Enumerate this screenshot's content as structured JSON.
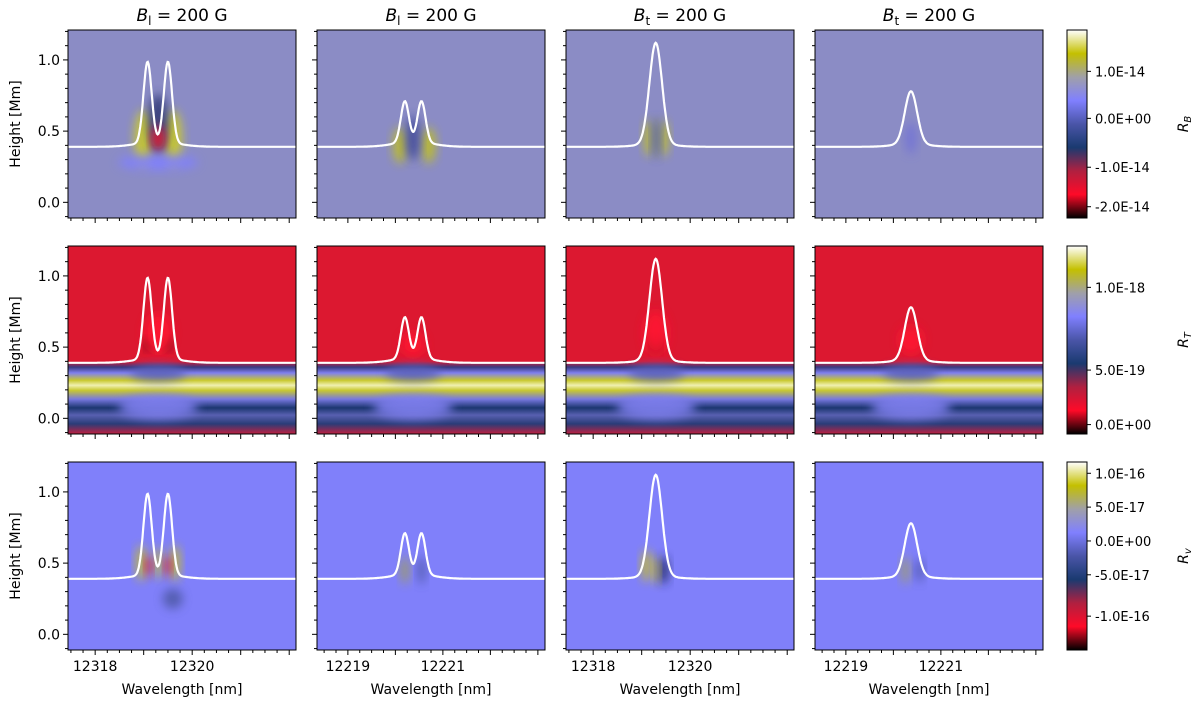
{
  "chart_data": {
    "type": "heatmap",
    "layout": "3 rows x 4 columns, shared colorbar per row",
    "columns": [
      {
        "title": {
          "symbol": "B",
          "sub": "l",
          "rest": " = 200 G"
        },
        "xlim": [
          12317.44,
          12322.14
        ],
        "xticks": [
          12318,
          12320
        ],
        "xlabel": "Wavelength [nm]",
        "formation_curve": {
          "baseline": 0.39,
          "peaks": [
            {
              "x": 12319.08,
              "y": 1.0
            },
            {
              "x": 12319.5,
              "y": 1.0
            }
          ],
          "dip": 0.69
        }
      },
      {
        "title": {
          "symbol": "B",
          "sub": "l",
          "rest": " = 200 G"
        },
        "xlim": [
          12218.35,
          12223.15
        ],
        "xticks": [
          12219,
          12221
        ],
        "xlabel": "Wavelength [nm]",
        "formation_curve": {
          "baseline": 0.39,
          "peaks": [
            {
              "x": 12220.2,
              "y": 0.7
            },
            {
              "x": 12220.55,
              "y": 0.7
            }
          ],
          "dip": 0.59
        }
      },
      {
        "title": {
          "symbol": "B",
          "sub": "t",
          "rest": " = 200 G"
        },
        "xlim": [
          12317.44,
          12322.14
        ],
        "xticks": [
          12318,
          12320
        ],
        "xlabel": "Wavelength [nm]",
        "formation_curve": {
          "baseline": 0.39,
          "peaks": [
            {
              "x": 12319.29,
              "y": 1.1
            }
          ],
          "dip": null
        }
      },
      {
        "title": {
          "symbol": "B",
          "sub": "t",
          "rest": " = 200 G"
        },
        "xlim": [
          12218.35,
          12223.15
        ],
        "xticks": [
          12219,
          12221
        ],
        "xlabel": "Wavelength [nm]",
        "formation_curve": {
          "baseline": 0.39,
          "peaks": [
            {
              "x": 12220.37,
              "y": 0.76
            }
          ],
          "dip": null
        }
      }
    ],
    "ylabel": "Height [Mm]",
    "ylim": [
      -0.11,
      1.21
    ],
    "yticks": [
      "0.0",
      "0.5",
      "1.0"
    ],
    "rows": [
      {
        "colorbar_label": {
          "symbol": "R",
          "sub": "B"
        },
        "background": "#8b8cc5",
        "colorbar_ticks": [
          "1.0E-14",
          "0.0E+00",
          "-1.0E-14",
          "-2.0E-14"
        ]
      },
      {
        "colorbar_label": {
          "symbol": "R",
          "sub": "T"
        },
        "background": "#dc1830",
        "colorbar_ticks": [
          "1.0E-18",
          "5.0E-19",
          "0.0E+00"
        ]
      },
      {
        "colorbar_label": {
          "symbol": "R",
          "sub": "v"
        },
        "background": "#8080fa",
        "colorbar_ticks": [
          "1.0E-16",
          "5.0E-17",
          "0.0E+00",
          "-5.0E-17",
          "-1.0E-16"
        ]
      }
    ],
    "colormap": [
      "#000000",
      "#ff0a28",
      "#b02040",
      "#1a3a70",
      "#4a55a8",
      "#8080ff",
      "#a0a0a8",
      "#c4c000",
      "#ffffff"
    ],
    "curve_color": "#ffffff"
  }
}
